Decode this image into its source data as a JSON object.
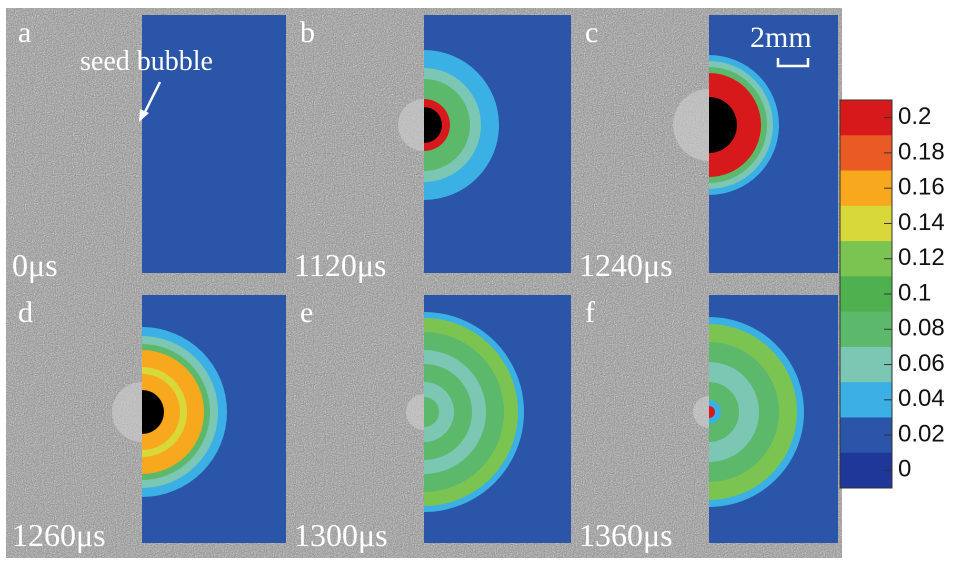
{
  "panels": [
    {
      "label": "a",
      "time": "0μs"
    },
    {
      "label": "b",
      "time": "1120μs"
    },
    {
      "label": "c",
      "time": "1240μs"
    },
    {
      "label": "d",
      "time": "1260μs"
    },
    {
      "label": "e",
      "time": "1300μs"
    },
    {
      "label": "f",
      "time": "1360μs"
    }
  ],
  "annotation": "seed bubble",
  "scale_bar": "2mm",
  "colorbar": {
    "ticks": [
      0.2,
      0.18,
      0.16,
      0.14,
      0.12,
      0.1,
      0.08,
      0.06,
      0.04,
      0.02,
      0
    ],
    "colors": [
      "#d7191c",
      "#ea5a24",
      "#f7a81d",
      "#d9d83a",
      "#7cc451",
      "#4fb04f",
      "#5cb86a",
      "#7cc6b4",
      "#3bb0e4",
      "#2a55a8",
      "#20379a"
    ]
  }
}
